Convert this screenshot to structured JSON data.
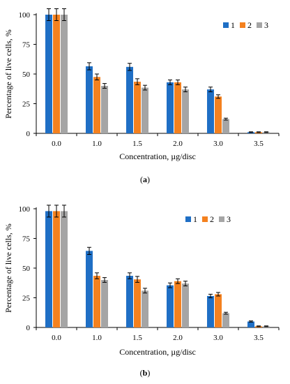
{
  "colors": {
    "series1": "#1f6fc5",
    "series2": "#f4811f",
    "series3": "#a5a5a5"
  },
  "chart_data": [
    {
      "type": "bar",
      "panel": "(a)",
      "panel_letter": "a",
      "categories": [
        "0.0",
        "1.0",
        "1.5",
        "2.0",
        "3.0",
        "3.5"
      ],
      "ylabel": "Percentage of live cells, %",
      "xlabel": "Concentration, µg/disc",
      "ylim": [
        0,
        100
      ],
      "yticks": [
        "0",
        "25",
        "50",
        "75",
        "100"
      ],
      "legend_position": "top-right",
      "grid": false,
      "error_bars": true,
      "series": [
        {
          "name": "1",
          "values": [
            100,
            56.5,
            56,
            43,
            37,
            1
          ],
          "errors": [
            5,
            3,
            3,
            2,
            2,
            0.3
          ]
        },
        {
          "name": "2",
          "values": [
            100,
            47.5,
            43.5,
            43,
            31,
            1
          ],
          "errors": [
            5,
            2.5,
            2.5,
            2,
            1.5,
            0.3
          ]
        },
        {
          "name": "3",
          "values": [
            100,
            40,
            38.5,
            37,
            12,
            1
          ],
          "errors": [
            5,
            2,
            2,
            2,
            0.8,
            0.3
          ]
        }
      ]
    },
    {
      "type": "bar",
      "panel": "(b)",
      "panel_letter": "b",
      "categories": [
        "0.0",
        "1.0",
        "1.5",
        "2.0",
        "3.0",
        "3.5"
      ],
      "ylabel": "Percentage of live cells, %",
      "xlabel": "Concentration, µg/disc",
      "ylim": [
        0,
        100
      ],
      "yticks": [
        "0",
        "25",
        "50",
        "75",
        "100"
      ],
      "legend_position": "top-right",
      "grid": false,
      "error_bars": true,
      "series": [
        {
          "name": "1",
          "values": [
            98,
            64.5,
            43.5,
            35.5,
            26.5,
            5
          ],
          "errors": [
            5,
            3,
            2.5,
            2,
            1.5,
            0.5
          ]
        },
        {
          "name": "2",
          "values": [
            98,
            43.5,
            40.5,
            39,
            28,
            1
          ],
          "errors": [
            5,
            2.5,
            2.5,
            2,
            1.5,
            0.3
          ]
        },
        {
          "name": "3",
          "values": [
            98,
            40,
            31,
            37,
            12,
            1
          ],
          "errors": [
            5,
            2,
            2,
            2,
            0.8,
            0.3
          ]
        }
      ]
    }
  ]
}
